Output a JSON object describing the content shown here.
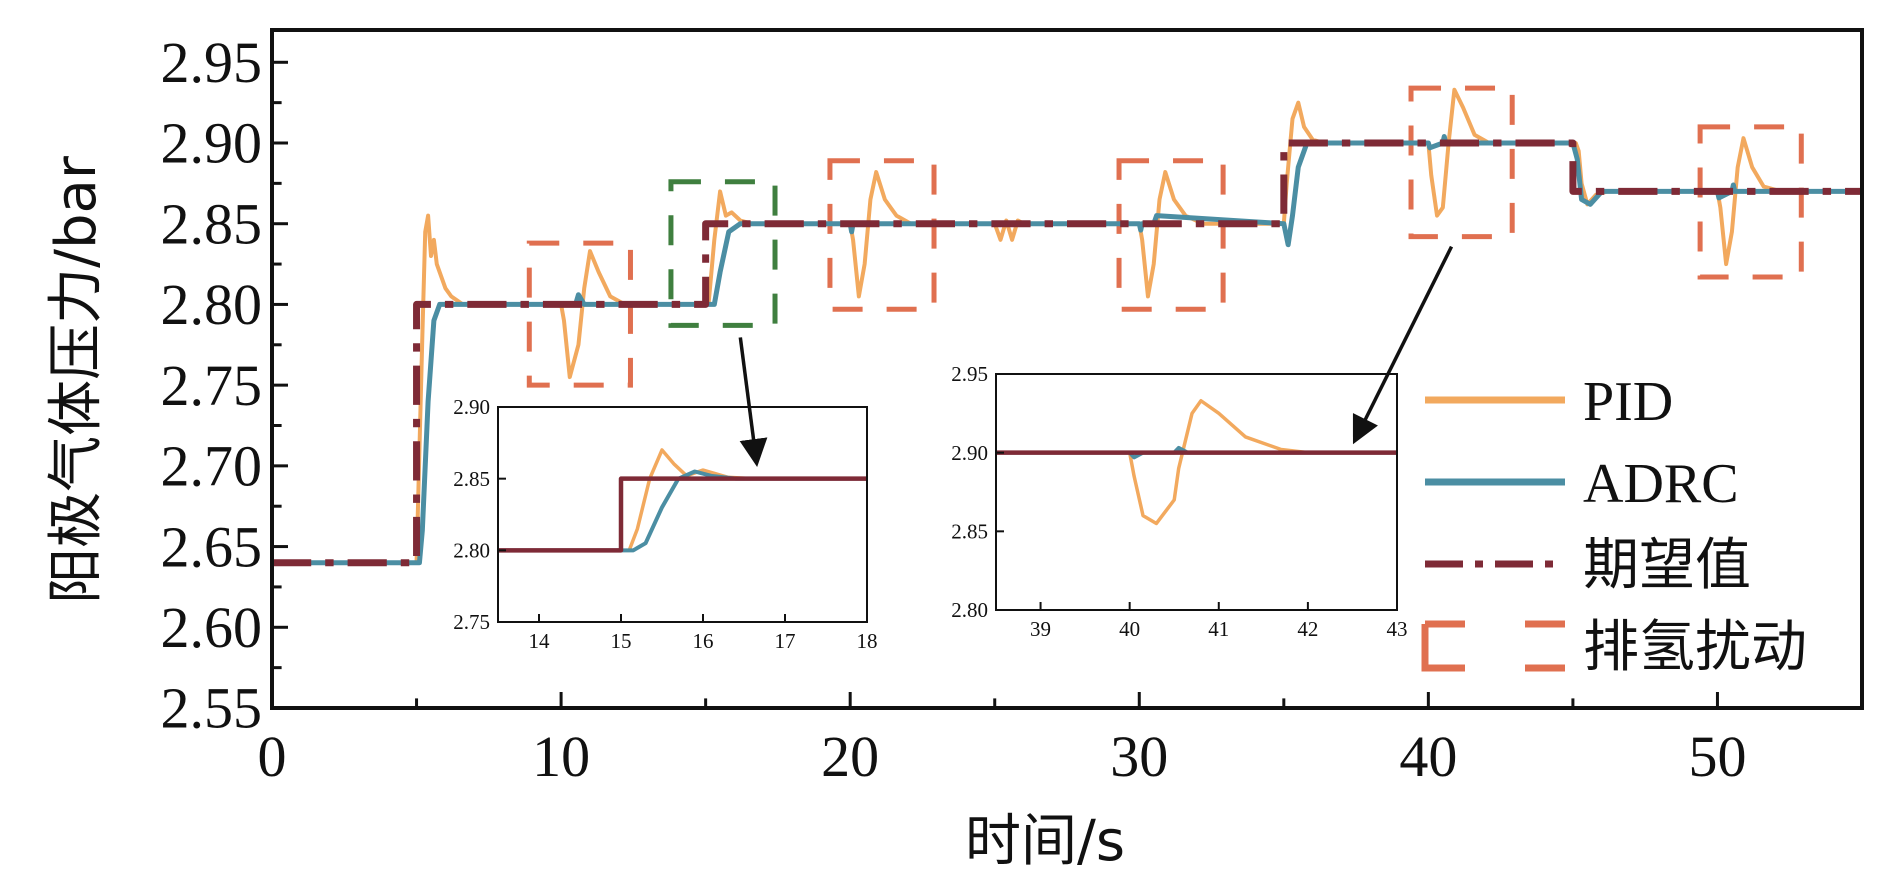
{
  "chart_data": [
    {
      "type": "line",
      "xlabel": "时间/s",
      "ylabel": "阳极气体压力/bar",
      "xlim": [
        0,
        55
      ],
      "ylim": [
        2.55,
        2.97
      ],
      "xticks": [
        0,
        10,
        20,
        30,
        40,
        50
      ],
      "xtick_labels": [
        "0",
        "10",
        "20",
        "30",
        "40",
        "50"
      ],
      "yticks": [
        2.55,
        2.6,
        2.65,
        2.7,
        2.75,
        2.8,
        2.85,
        2.9,
        2.95
      ],
      "ytick_labels": [
        "2.55",
        "2.60",
        "2.65",
        "2.70",
        "2.75",
        "2.80",
        "2.85",
        "2.90",
        "2.95"
      ],
      "grid": false,
      "legend_position": "right",
      "series": [
        {
          "name": "PID",
          "color": "#f2a95e",
          "style": "solid",
          "x": [
            0,
            5.0,
            5.2,
            5.3,
            5.4,
            5.5,
            5.6,
            5.7,
            5.8,
            6.0,
            6.2,
            6.6,
            7.0,
            10.0,
            10.1,
            10.3,
            10.6,
            10.8,
            11.0,
            11.3,
            11.7,
            12.2,
            15.0,
            15.1,
            15.3,
            15.5,
            15.7,
            15.9,
            16.2,
            16.6,
            20.0,
            20.1,
            20.3,
            20.5,
            20.7,
            20.9,
            21.2,
            21.6,
            22.1,
            25.0,
            25.2,
            25.4,
            25.6,
            25.8,
            26.0,
            30.0,
            30.1,
            30.3,
            30.5,
            30.7,
            30.9,
            31.2,
            31.6,
            32.2,
            35.0,
            35.1,
            35.3,
            35.5,
            35.7,
            36.0,
            36.4,
            40.0,
            40.1,
            40.3,
            40.5,
            40.7,
            40.9,
            41.2,
            41.6,
            42.1,
            45.0,
            45.1,
            45.2,
            45.3,
            45.5,
            45.8,
            46.2,
            50.0,
            50.1,
            50.3,
            50.5,
            50.7,
            50.9,
            51.2,
            51.6,
            52.2,
            55.0
          ],
          "y": [
            2.64,
            2.64,
            2.78,
            2.845,
            2.855,
            2.83,
            2.84,
            2.825,
            2.82,
            2.81,
            2.805,
            2.8,
            2.8,
            2.8,
            2.79,
            2.755,
            2.775,
            2.81,
            2.833,
            2.82,
            2.805,
            2.8,
            2.8,
            2.8,
            2.84,
            2.87,
            2.855,
            2.857,
            2.852,
            2.85,
            2.85,
            2.84,
            2.805,
            2.825,
            2.865,
            2.882,
            2.865,
            2.855,
            2.85,
            2.85,
            2.84,
            2.852,
            2.84,
            2.852,
            2.85,
            2.85,
            2.84,
            2.805,
            2.825,
            2.865,
            2.882,
            2.865,
            2.855,
            2.85,
            2.85,
            2.875,
            2.915,
            2.925,
            2.91,
            2.902,
            2.9,
            2.9,
            2.88,
            2.855,
            2.86,
            2.9,
            2.933,
            2.922,
            2.905,
            2.9,
            2.9,
            2.9,
            2.895,
            2.875,
            2.862,
            2.868,
            2.87,
            2.87,
            2.86,
            2.825,
            2.845,
            2.885,
            2.903,
            2.885,
            2.873,
            2.87,
            2.87
          ]
        },
        {
          "name": "ADRC",
          "color": "#4b8ea3",
          "style": "solid",
          "x": [
            0,
            5.0,
            5.1,
            5.2,
            5.4,
            5.6,
            5.8,
            6.0,
            6.3,
            10.0,
            10.5,
            10.6,
            10.8,
            11.0,
            15.0,
            15.1,
            15.3,
            15.5,
            15.8,
            16.2,
            20.0,
            20.05,
            20.1,
            20.5,
            30.0,
            30.05,
            30.1,
            30.5,
            30.6,
            35.0,
            35.15,
            35.3,
            35.5,
            35.8,
            36.2,
            40.0,
            40.05,
            40.5,
            40.55,
            40.6,
            45.0,
            45.15,
            45.3,
            45.6,
            46.0,
            50.0,
            50.05,
            50.5,
            50.55,
            50.6,
            55.0
          ],
          "y": [
            2.64,
            2.64,
            2.64,
            2.66,
            2.74,
            2.79,
            2.8,
            2.8,
            2.8,
            2.8,
            2.8,
            2.806,
            2.8,
            2.8,
            2.8,
            2.8,
            2.8,
            2.82,
            2.845,
            2.85,
            2.85,
            2.845,
            2.85,
            2.85,
            2.85,
            2.846,
            2.85,
            2.85,
            2.855,
            2.85,
            2.837,
            2.855,
            2.885,
            2.9,
            2.9,
            2.9,
            2.897,
            2.9,
            2.904,
            2.9,
            2.9,
            2.89,
            2.865,
            2.862,
            2.87,
            2.87,
            2.866,
            2.87,
            2.874,
            2.87,
            2.87
          ]
        },
        {
          "name": "期望值",
          "color": "#7e2a36",
          "style": "dashdot",
          "x": [
            0,
            5.0,
            5.0,
            15.0,
            15.0,
            35.0,
            35.0,
            45.0,
            45.0,
            55.0
          ],
          "y": [
            2.64,
            2.64,
            2.8,
            2.8,
            2.85,
            2.85,
            2.9,
            2.9,
            2.87,
            2.87
          ]
        }
      ],
      "annotation_boxes": [
        {
          "name": "排氢扰动",
          "color": "#e07050",
          "x": [
            8.9,
            12.4
          ],
          "y": [
            2.75,
            2.838
          ]
        },
        {
          "name": "",
          "color": "#e07050",
          "x": [
            19.3,
            22.9
          ],
          "y": [
            2.797,
            2.889
          ]
        },
        {
          "name": "",
          "color": "#e07050",
          "x": [
            29.3,
            32.9
          ],
          "y": [
            2.797,
            2.889
          ]
        },
        {
          "name": "",
          "color": "#e07050",
          "x": [
            39.4,
            42.9
          ],
          "y": [
            2.842,
            2.934
          ]
        },
        {
          "name": "",
          "color": "#e07050",
          "x": [
            49.4,
            52.9
          ],
          "y": [
            2.817,
            2.91
          ]
        },
        {
          "name": "",
          "color": "#3f7f3f",
          "x": [
            13.8,
            17.4
          ],
          "y": [
            2.787,
            2.876
          ]
        }
      ],
      "legend": [
        {
          "label": "PID",
          "color": "#f2a95e",
          "style": "solid"
        },
        {
          "label": "ADRC",
          "color": "#4b8ea3",
          "style": "solid"
        },
        {
          "label": "期望值",
          "color": "#7e2a36",
          "style": "dashdot"
        },
        {
          "label": "排氢扰动",
          "color": "#e07050",
          "style": "dashed"
        }
      ]
    },
    {
      "type": "line",
      "xlim": [
        13.5,
        18
      ],
      "ylim": [
        2.75,
        2.9
      ],
      "xticks": [
        14,
        15,
        16,
        17,
        18
      ],
      "xtick_labels": [
        "14",
        "15",
        "16",
        "17",
        "18"
      ],
      "yticks": [
        2.75,
        2.8,
        2.85,
        2.9
      ],
      "ytick_labels": [
        "2.75",
        "2.80",
        "2.85",
        "2.90"
      ],
      "series": [
        {
          "name": "PID",
          "color": "#f2a95e",
          "x": [
            13.5,
            15.0,
            15.1,
            15.2,
            15.35,
            15.5,
            15.65,
            15.8,
            16.0,
            16.3,
            16.6,
            18.0
          ],
          "y": [
            2.8,
            2.8,
            2.8,
            2.815,
            2.85,
            2.87,
            2.86,
            2.852,
            2.856,
            2.851,
            2.85,
            2.85
          ]
        },
        {
          "name": "ADRC",
          "color": "#4b8ea3",
          "x": [
            13.5,
            15.0,
            15.15,
            15.3,
            15.5,
            15.7,
            15.9,
            16.1,
            16.4,
            18.0
          ],
          "y": [
            2.8,
            2.8,
            2.8,
            2.805,
            2.83,
            2.85,
            2.855,
            2.852,
            2.85,
            2.85
          ]
        },
        {
          "name": "期望值",
          "color": "#7e2a36",
          "x": [
            13.5,
            15.0,
            15.0,
            18.0
          ],
          "y": [
            2.8,
            2.8,
            2.85,
            2.85
          ]
        }
      ]
    },
    {
      "type": "line",
      "xlim": [
        38.5,
        43
      ],
      "ylim": [
        2.8,
        2.95
      ],
      "xticks": [
        39,
        40,
        41,
        42,
        43
      ],
      "xtick_labels": [
        "39",
        "40",
        "41",
        "42",
        "43"
      ],
      "yticks": [
        2.8,
        2.85,
        2.9,
        2.95
      ],
      "ytick_labels": [
        "2.80",
        "2.85",
        "2.90",
        "2.95"
      ],
      "series": [
        {
          "name": "PID",
          "color": "#f2a95e",
          "x": [
            38.5,
            40.0,
            40.05,
            40.15,
            40.3,
            40.5,
            40.55,
            40.7,
            40.8,
            41.0,
            41.3,
            41.7,
            42.0,
            43.0
          ],
          "y": [
            2.9,
            2.9,
            2.885,
            2.86,
            2.855,
            2.87,
            2.89,
            2.925,
            2.933,
            2.925,
            2.91,
            2.902,
            2.9,
            2.9
          ]
        },
        {
          "name": "ADRC",
          "color": "#4b8ea3",
          "x": [
            38.5,
            40.0,
            40.05,
            40.15,
            40.5,
            40.55,
            40.65,
            43.0
          ],
          "y": [
            2.9,
            2.9,
            2.897,
            2.9,
            2.9,
            2.903,
            2.9,
            2.9
          ]
        },
        {
          "name": "期望值",
          "color": "#7e2a36",
          "x": [
            38.5,
            43.0
          ],
          "y": [
            2.9,
            2.9
          ]
        }
      ]
    }
  ]
}
